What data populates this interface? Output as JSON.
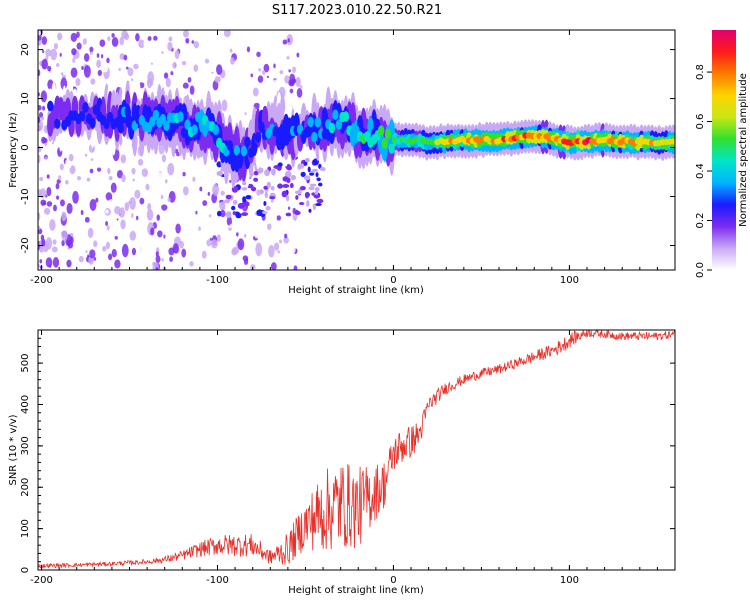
{
  "figure_title": "S117.2023.010.22.50.R21",
  "chart_data": [
    {
      "type": "heatmap",
      "xlabel": "Height of straight line (km)",
      "ylabel": "Frequency (Hz)",
      "xlim": [
        -202,
        160
      ],
      "ylim": [
        -25,
        24
      ],
      "xticks": [
        -200,
        -100,
        0,
        100
      ],
      "yticks": [
        -20,
        -10,
        0,
        10,
        20
      ],
      "colorbar": {
        "label": "Normalized spectral amplitude",
        "range": [
          0.0,
          0.97
        ],
        "ticks": [
          0.0,
          0.2,
          0.4,
          0.6,
          0.8
        ],
        "colors": [
          "#ffffff",
          "#c9a8f5",
          "#7b2cf0",
          "#1a1aff",
          "#00b4ff",
          "#00e5c8",
          "#30e030",
          "#c8e614",
          "#ffd400",
          "#ff7a00",
          "#ff1a1a",
          "#e0006e"
        ]
      },
      "ridge": [
        {
          "x": -180,
          "f": 6.5,
          "amp": 0.25
        },
        {
          "x": -160,
          "f": 6.0,
          "amp": 0.3
        },
        {
          "x": -140,
          "f": 5.8,
          "amp": 0.35
        },
        {
          "x": -120,
          "f": 5.0,
          "amp": 0.38
        },
        {
          "x": -105,
          "f": 4.0,
          "amp": 0.4
        },
        {
          "x": -95,
          "f": 0.5,
          "amp": 0.38
        },
        {
          "x": -85,
          "f": -2.0,
          "amp": 0.32
        },
        {
          "x": -75,
          "f": 4.5,
          "amp": 0.3
        },
        {
          "x": -60,
          "f": 3.0,
          "amp": 0.3
        },
        {
          "x": -45,
          "f": 4.0,
          "amp": 0.32
        },
        {
          "x": -30,
          "f": 5.5,
          "amp": 0.4
        },
        {
          "x": -20,
          "f": 3.0,
          "amp": 0.45
        },
        {
          "x": -5,
          "f": 1.5,
          "amp": 0.5
        },
        {
          "x": 10,
          "f": 1.5,
          "amp": 0.55
        },
        {
          "x": 20,
          "f": 1.0,
          "amp": 0.6
        },
        {
          "x": 40,
          "f": 1.5,
          "amp": 0.75
        },
        {
          "x": 60,
          "f": 1.5,
          "amp": 0.8
        },
        {
          "x": 80,
          "f": 2.5,
          "amp": 0.8
        },
        {
          "x": 100,
          "f": 1.0,
          "amp": 0.85
        },
        {
          "x": 120,
          "f": 1.5,
          "amp": 0.85
        },
        {
          "x": 140,
          "f": 1.0,
          "amp": 0.75
        },
        {
          "x": 160,
          "f": 1.0,
          "amp": 0.7
        }
      ]
    },
    {
      "type": "line",
      "xlabel": "Height of straight line (km)",
      "ylabel": "SNR (10 * v/v)",
      "xlim": [
        -202,
        160
      ],
      "ylim": [
        0,
        580
      ],
      "xticks": [
        -200,
        -100,
        0,
        100
      ],
      "yticks": [
        0,
        100,
        200,
        300,
        400,
        500
      ],
      "color": "#e8302a",
      "series": [
        {
          "x": [
            -200,
            -180,
            -160,
            -140,
            -130,
            -120,
            -110,
            -100,
            -90,
            -80,
            -70,
            -60,
            -50,
            -40,
            -30,
            -20,
            -10,
            -5,
            0,
            5,
            10,
            15,
            20,
            30,
            40,
            50,
            60,
            70,
            80,
            90,
            95,
            100,
            110,
            120,
            130,
            140,
            150,
            160
          ],
          "values": [
            10,
            12,
            15,
            20,
            25,
            35,
            50,
            60,
            60,
            60,
            30,
            50,
            110,
            140,
            160,
            150,
            190,
            210,
            280,
            300,
            310,
            330,
            400,
            440,
            460,
            475,
            485,
            500,
            515,
            530,
            540,
            555,
            575,
            570,
            565,
            565,
            565,
            570
          ],
          "spread": [
            5,
            5,
            5,
            6,
            8,
            12,
            18,
            25,
            28,
            28,
            18,
            40,
            60,
            100,
            110,
            100,
            70,
            60,
            45,
            45,
            40,
            35,
            20,
            15,
            12,
            12,
            12,
            12,
            15,
            15,
            18,
            18,
            12,
            10,
            10,
            10,
            10,
            10
          ]
        }
      ]
    }
  ]
}
